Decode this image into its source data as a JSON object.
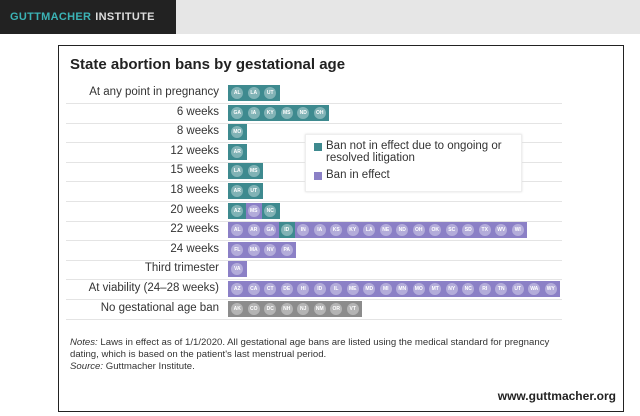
{
  "header": {
    "brand_part1": "GUTTMACHER",
    "brand_part2": "INSTITUTE"
  },
  "colors": {
    "litigation": "#3e8a8f",
    "in_effect": "#8b80c6",
    "none": "#8c8c8c"
  },
  "chart_data": {
    "type": "table",
    "title": "State abortion bans by gestational age",
    "legend": [
      {
        "key": "litigation",
        "label_line1": "Ban not in effect due to ongoing or",
        "label_line2": "resolved litigation"
      },
      {
        "key": "in_effect",
        "label_line1": "Ban in effect"
      }
    ],
    "legend_placement": "center",
    "rows": [
      {
        "label": "At any point in pregnancy",
        "states": [
          [
            "AL",
            "litigation"
          ],
          [
            "LA",
            "litigation"
          ],
          [
            "UT",
            "litigation"
          ]
        ]
      },
      {
        "label": "6 weeks",
        "states": [
          [
            "GA",
            "litigation"
          ],
          [
            "IA",
            "litigation"
          ],
          [
            "KY",
            "litigation"
          ],
          [
            "MS",
            "litigation"
          ],
          [
            "ND",
            "litigation"
          ],
          [
            "OH",
            "litigation"
          ]
        ]
      },
      {
        "label": "8 weeks",
        "states": [
          [
            "MO",
            "litigation"
          ]
        ]
      },
      {
        "label": "12 weeks",
        "states": [
          [
            "AR",
            "litigation"
          ]
        ]
      },
      {
        "label": "15 weeks",
        "states": [
          [
            "LA",
            "litigation"
          ],
          [
            "MS",
            "litigation"
          ]
        ]
      },
      {
        "label": "18 weeks",
        "states": [
          [
            "AR",
            "litigation"
          ],
          [
            "UT",
            "litigation"
          ]
        ]
      },
      {
        "label": "20 weeks",
        "states": [
          [
            "AZ",
            "litigation"
          ],
          [
            "MS",
            "in_effect"
          ],
          [
            "NC",
            "litigation"
          ]
        ]
      },
      {
        "label": "22 weeks",
        "states": [
          [
            "AL",
            "in_effect"
          ],
          [
            "AR",
            "in_effect"
          ],
          [
            "GA",
            "in_effect"
          ],
          [
            "ID",
            "litigation"
          ],
          [
            "IN",
            "in_effect"
          ],
          [
            "IA",
            "in_effect"
          ],
          [
            "KS",
            "in_effect"
          ],
          [
            "KY",
            "in_effect"
          ],
          [
            "LA",
            "in_effect"
          ],
          [
            "NE",
            "in_effect"
          ],
          [
            "ND",
            "in_effect"
          ],
          [
            "OH",
            "in_effect"
          ],
          [
            "OK",
            "in_effect"
          ],
          [
            "SC",
            "in_effect"
          ],
          [
            "SD",
            "in_effect"
          ],
          [
            "TX",
            "in_effect"
          ],
          [
            "WV",
            "in_effect"
          ],
          [
            "WI",
            "in_effect"
          ]
        ]
      },
      {
        "label": "24 weeks",
        "states": [
          [
            "FL",
            "in_effect"
          ],
          [
            "MA",
            "in_effect"
          ],
          [
            "NV",
            "in_effect"
          ],
          [
            "PA",
            "in_effect"
          ]
        ]
      },
      {
        "label": "Third trimester",
        "states": [
          [
            "VA",
            "in_effect"
          ]
        ]
      },
      {
        "label": "At viability (24–28 weeks)",
        "states": [
          [
            "AZ",
            "in_effect"
          ],
          [
            "CA",
            "in_effect"
          ],
          [
            "CT",
            "in_effect"
          ],
          [
            "DE",
            "in_effect"
          ],
          [
            "HI",
            "in_effect"
          ],
          [
            "ID",
            "in_effect"
          ],
          [
            "IL",
            "in_effect"
          ],
          [
            "ME",
            "in_effect"
          ],
          [
            "MD",
            "in_effect"
          ],
          [
            "MI",
            "in_effect"
          ],
          [
            "MN",
            "in_effect"
          ],
          [
            "MO",
            "in_effect"
          ],
          [
            "MT",
            "in_effect"
          ],
          [
            "NY",
            "in_effect"
          ],
          [
            "NC",
            "in_effect"
          ],
          [
            "RI",
            "in_effect"
          ],
          [
            "TN",
            "in_effect"
          ],
          [
            "UT",
            "in_effect"
          ],
          [
            "WA",
            "in_effect"
          ],
          [
            "WY",
            "in_effect"
          ]
        ]
      },
      {
        "label": "No gestational age ban",
        "states": [
          [
            "AK",
            "none"
          ],
          [
            "CO",
            "none"
          ],
          [
            "DC",
            "none"
          ],
          [
            "NH",
            "none"
          ],
          [
            "NJ",
            "none"
          ],
          [
            "NM",
            "none"
          ],
          [
            "OR",
            "none"
          ],
          [
            "VT",
            "none"
          ]
        ]
      }
    ]
  },
  "notes": {
    "notes_label": "Notes:",
    "notes_text": " Laws in effect as of 1/1/2020. All gestational age bans are listed using the medical standard for pregnancy dating, which is based on the patient's last menstrual period.",
    "source_label": "Source:",
    "source_text": " Guttmacher Institute."
  },
  "url": "www.guttmacher.org"
}
